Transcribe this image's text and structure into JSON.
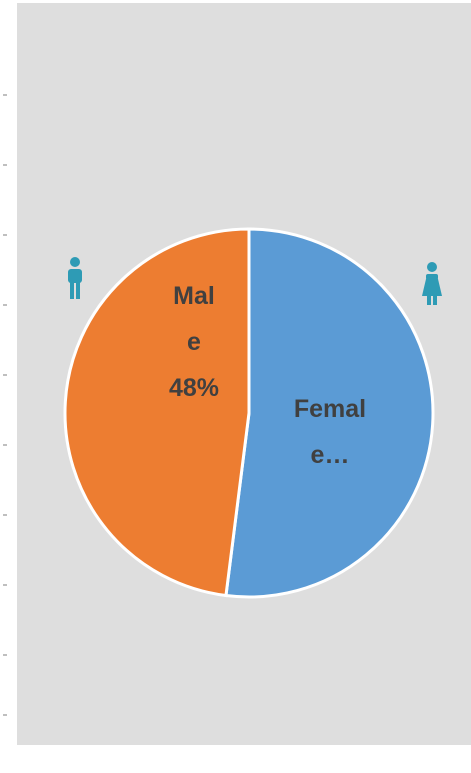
{
  "chart_data": {
    "type": "pie",
    "values": [
      52,
      48
    ],
    "value_labels": [
      "Female…",
      "Male 48%"
    ],
    "colors": [
      "#5b9bd5",
      "#ed7d31"
    ]
  }
}
